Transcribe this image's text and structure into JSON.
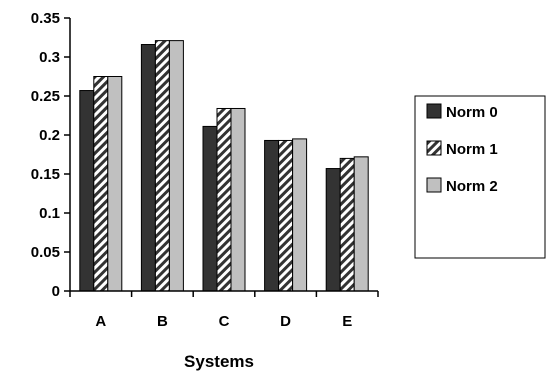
{
  "chart_data": {
    "type": "bar",
    "title": "",
    "xlabel": "Systems",
    "ylabel": "",
    "categories": [
      "A",
      "B",
      "C",
      "D",
      "E"
    ],
    "ylim": [
      0,
      0.35
    ],
    "yticks": [
      "0",
      "0.05",
      "0.1",
      "0.15",
      "0.2",
      "0.25",
      "0.3",
      "0.35"
    ],
    "legend_position": "right",
    "grid": false,
    "series": [
      {
        "name": "Norm 0",
        "values": [
          0.257,
          0.316,
          0.211,
          0.193,
          0.157
        ],
        "color": "#333333",
        "pattern": "solid"
      },
      {
        "name": "Norm 1",
        "values": [
          0.275,
          0.321,
          0.234,
          0.193,
          0.17
        ],
        "color": "#333333",
        "pattern": "diagonal-stripes"
      },
      {
        "name": "Norm 2",
        "values": [
          0.275,
          0.321,
          0.234,
          0.195,
          0.172
        ],
        "color": "#c0c0c0",
        "pattern": "solid"
      }
    ]
  }
}
